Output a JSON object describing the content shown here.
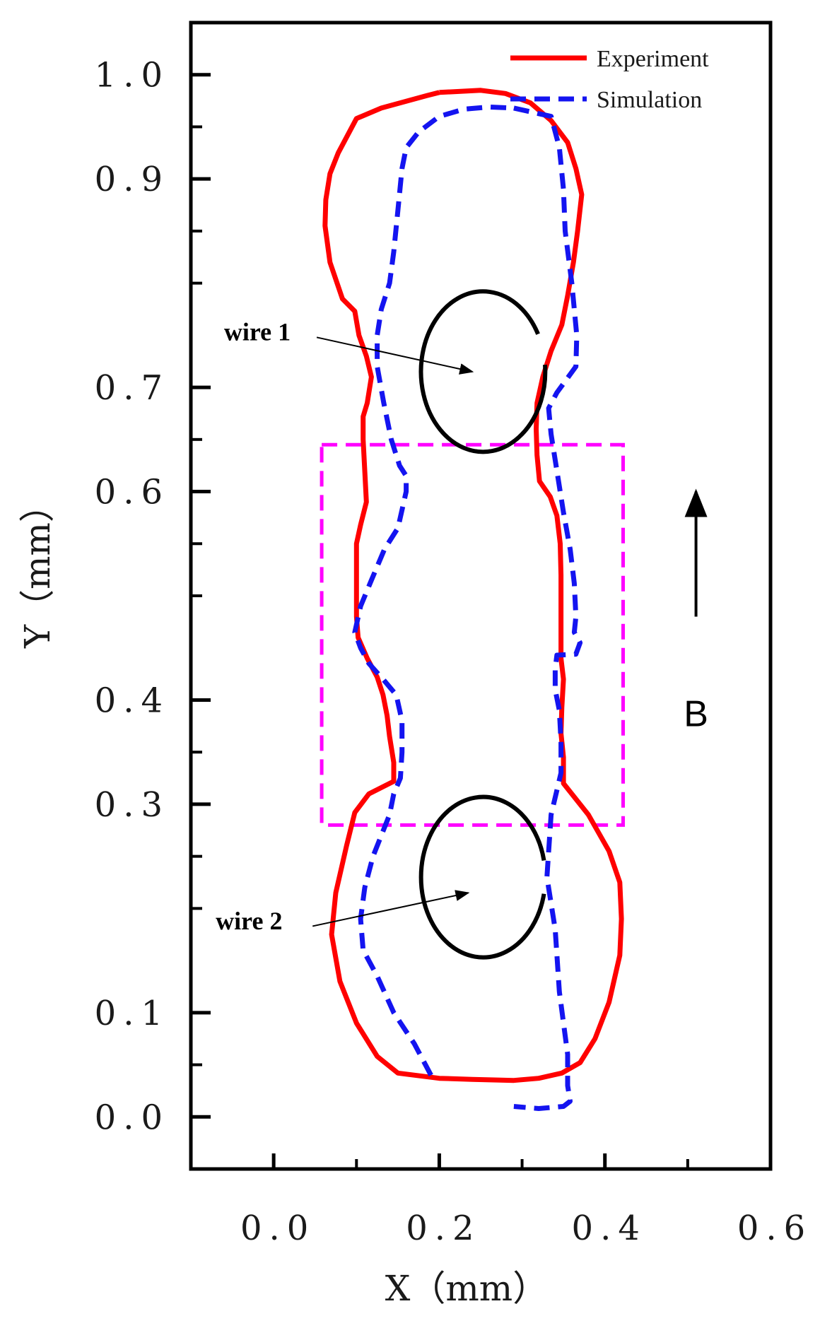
{
  "chart_data": {
    "type": "line",
    "title": "",
    "xlabel": "X（mm）",
    "ylabel": "Y（mm）",
    "xlim": [
      -0.1,
      0.6
    ],
    "ylim": [
      -0.05,
      1.05
    ],
    "grid": false,
    "legend_position": "top-right",
    "x_ticks": [
      0.0,
      0.2,
      0.4,
      0.6
    ],
    "x_tick_labels": [
      "0.0",
      "0.2",
      "0.4",
      "0.6"
    ],
    "x_minor_ticks": [
      0.1,
      0.3,
      0.5
    ],
    "y_ticks": [
      0.0,
      0.1,
      0.3,
      0.4,
      0.6,
      0.7,
      0.9,
      1.0
    ],
    "y_tick_labels": [
      "0.0",
      "0.1",
      "0.3",
      "0.4",
      "0.6",
      "0.7",
      "0.9",
      "1.0"
    ],
    "y_minor_ticks": [
      0.05,
      0.2,
      0.25,
      0.35,
      0.5,
      0.55,
      0.65,
      0.8,
      0.85,
      0.95
    ],
    "colors": {
      "experiment": "#ff0000",
      "simulation": "#1414f0",
      "box": "#ff00ff",
      "wire": "#000000",
      "axes": "#000000"
    },
    "series": [
      {
        "name": "Experiment",
        "style": "solid",
        "points": [
          [
            0.2,
            0.983
          ],
          [
            0.25,
            0.985
          ],
          [
            0.28,
            0.982
          ],
          [
            0.31,
            0.973
          ],
          [
            0.335,
            0.956
          ],
          [
            0.355,
            0.935
          ],
          [
            0.365,
            0.91
          ],
          [
            0.372,
            0.885
          ],
          [
            0.367,
            0.85
          ],
          [
            0.362,
            0.82
          ],
          [
            0.355,
            0.788
          ],
          [
            0.348,
            0.76
          ],
          [
            0.335,
            0.735
          ],
          [
            0.325,
            0.71
          ],
          [
            0.318,
            0.685
          ],
          [
            0.317,
            0.66
          ],
          [
            0.318,
            0.635
          ],
          [
            0.321,
            0.61
          ],
          [
            0.334,
            0.595
          ],
          [
            0.342,
            0.577
          ],
          [
            0.346,
            0.55
          ],
          [
            0.347,
            0.52
          ],
          [
            0.347,
            0.49
          ],
          [
            0.347,
            0.463
          ],
          [
            0.347,
            0.44
          ],
          [
            0.35,
            0.42
          ],
          [
            0.348,
            0.393
          ],
          [
            0.347,
            0.368
          ],
          [
            0.35,
            0.345
          ],
          [
            0.35,
            0.32
          ],
          [
            0.38,
            0.29
          ],
          [
            0.405,
            0.255
          ],
          [
            0.418,
            0.225
          ],
          [
            0.42,
            0.19
          ],
          [
            0.418,
            0.155
          ],
          [
            0.405,
            0.11
          ],
          [
            0.388,
            0.075
          ],
          [
            0.37,
            0.052
          ],
          [
            0.348,
            0.042
          ],
          [
            0.32,
            0.037
          ],
          [
            0.29,
            0.035
          ],
          [
            0.24,
            0.036
          ],
          [
            0.2,
            0.037
          ],
          [
            0.15,
            0.042
          ],
          [
            0.125,
            0.058
          ],
          [
            0.1,
            0.09
          ],
          [
            0.08,
            0.13
          ],
          [
            0.07,
            0.175
          ],
          [
            0.075,
            0.215
          ],
          [
            0.088,
            0.26
          ],
          [
            0.098,
            0.292
          ],
          [
            0.115,
            0.31
          ],
          [
            0.145,
            0.322
          ],
          [
            0.145,
            0.34
          ],
          [
            0.14,
            0.365
          ],
          [
            0.137,
            0.385
          ],
          [
            0.132,
            0.405
          ],
          [
            0.125,
            0.422
          ],
          [
            0.113,
            0.44
          ],
          [
            0.102,
            0.46
          ],
          [
            0.1,
            0.48
          ],
          [
            0.1,
            0.5
          ],
          [
            0.1,
            0.52
          ],
          [
            0.1,
            0.55
          ],
          [
            0.105,
            0.568
          ],
          [
            0.112,
            0.59
          ],
          [
            0.11,
            0.62
          ],
          [
            0.108,
            0.65
          ],
          [
            0.108,
            0.672
          ],
          [
            0.113,
            0.685
          ],
          [
            0.118,
            0.71
          ],
          [
            0.112,
            0.73
          ],
          [
            0.103,
            0.75
          ],
          [
            0.098,
            0.773
          ],
          [
            0.083,
            0.785
          ],
          [
            0.068,
            0.82
          ],
          [
            0.062,
            0.855
          ],
          [
            0.063,
            0.88
          ],
          [
            0.068,
            0.905
          ],
          [
            0.078,
            0.925
          ],
          [
            0.1,
            0.958
          ],
          [
            0.13,
            0.968
          ],
          [
            0.162,
            0.975
          ],
          [
            0.185,
            0.98
          ],
          [
            0.2,
            0.983
          ]
        ]
      },
      {
        "name": "Simulation",
        "style": "dashed",
        "points": [
          [
            0.29,
            0.968
          ],
          [
            0.335,
            0.96
          ],
          [
            0.345,
            0.93
          ],
          [
            0.35,
            0.89
          ],
          [
            0.352,
            0.85
          ],
          [
            0.36,
            0.8
          ],
          [
            0.366,
            0.75
          ],
          [
            0.365,
            0.72
          ],
          [
            0.342,
            0.695
          ],
          [
            0.332,
            0.68
          ],
          [
            0.335,
            0.655
          ],
          [
            0.342,
            0.62
          ],
          [
            0.35,
            0.58
          ],
          [
            0.358,
            0.545
          ],
          [
            0.363,
            0.512
          ],
          [
            0.365,
            0.48
          ],
          [
            0.363,
            0.465
          ],
          [
            0.37,
            0.455
          ],
          [
            0.365,
            0.444
          ],
          [
            0.342,
            0.443
          ],
          [
            0.34,
            0.43
          ],
          [
            0.34,
            0.41
          ],
          [
            0.345,
            0.39
          ],
          [
            0.347,
            0.36
          ],
          [
            0.347,
            0.33
          ],
          [
            0.335,
            0.29
          ],
          [
            0.33,
            0.23
          ],
          [
            0.34,
            0.18
          ],
          [
            0.345,
            0.12
          ],
          [
            0.355,
            0.06
          ],
          [
            0.355,
            0.03
          ],
          [
            0.358,
            0.015
          ],
          [
            0.35,
            0.01
          ],
          [
            0.32,
            0.008
          ],
          [
            0.29,
            0.01
          ],
          null,
          [
            0.19,
            0.04
          ],
          [
            0.17,
            0.07
          ],
          [
            0.145,
            0.1
          ],
          [
            0.125,
            0.135
          ],
          [
            0.108,
            0.16
          ],
          [
            0.105,
            0.19
          ],
          [
            0.11,
            0.22
          ],
          [
            0.12,
            0.25
          ],
          [
            0.14,
            0.29
          ],
          [
            0.145,
            0.31
          ],
          [
            0.153,
            0.325
          ],
          [
            0.155,
            0.35
          ],
          [
            0.155,
            0.38
          ],
          [
            0.148,
            0.405
          ],
          [
            0.132,
            0.42
          ],
          [
            0.115,
            0.435
          ],
          [
            0.105,
            0.45
          ],
          [
            0.098,
            0.465
          ],
          [
            0.105,
            0.49
          ],
          [
            0.118,
            0.515
          ],
          [
            0.134,
            0.545
          ],
          [
            0.15,
            0.565
          ],
          [
            0.16,
            0.6
          ],
          [
            0.16,
            0.615
          ],
          [
            0.152,
            0.625
          ],
          [
            0.142,
            0.65
          ],
          [
            0.133,
            0.685
          ],
          [
            0.125,
            0.72
          ],
          [
            0.125,
            0.75
          ],
          [
            0.13,
            0.775
          ],
          [
            0.14,
            0.8
          ],
          [
            0.145,
            0.83
          ],
          [
            0.15,
            0.87
          ],
          [
            0.155,
            0.91
          ],
          [
            0.16,
            0.93
          ],
          [
            0.175,
            0.945
          ],
          [
            0.2,
            0.96
          ],
          [
            0.23,
            0.967
          ],
          [
            0.26,
            0.969
          ],
          [
            0.29,
            0.968
          ]
        ]
      }
    ],
    "annotations": [
      {
        "type": "circle",
        "name": "wire-1-circle",
        "center": [
          0.253,
          0.715
        ],
        "radius": [
          0.075,
          0.077
        ],
        "gap_deg": [
          5,
          28
        ]
      },
      {
        "type": "circle",
        "name": "wire-2-circle",
        "center": [
          0.253,
          0.23
        ],
        "radius": [
          0.075,
          0.077
        ],
        "gap_deg": [
          -12,
          12
        ]
      },
      {
        "type": "text",
        "name": "wire-1-label",
        "text": "wire 1",
        "at": [
          -0.06,
          0.745
        ]
      },
      {
        "type": "arrow",
        "name": "wire-1-arrow",
        "from": [
          0.052,
          0.748
        ],
        "to": [
          0.24,
          0.715
        ]
      },
      {
        "type": "text",
        "name": "wire-2-label",
        "text": "wire 2",
        "at": [
          -0.07,
          0.18
        ]
      },
      {
        "type": "arrow",
        "name": "wire-2-arrow",
        "from": [
          0.047,
          0.183
        ],
        "to": [
          0.235,
          0.215
        ]
      },
      {
        "type": "rect",
        "name": "highlight-box",
        "x0": 0.058,
        "x1": 0.422,
        "y0": 0.28,
        "y1": 0.645
      },
      {
        "type": "arrow",
        "name": "field-arrow-b",
        "from": [
          0.51,
          0.48
        ],
        "to": [
          0.51,
          0.6
        ]
      },
      {
        "type": "text",
        "name": "field-label-b",
        "text": "B",
        "at": [
          0.51,
          0.375
        ]
      }
    ]
  }
}
